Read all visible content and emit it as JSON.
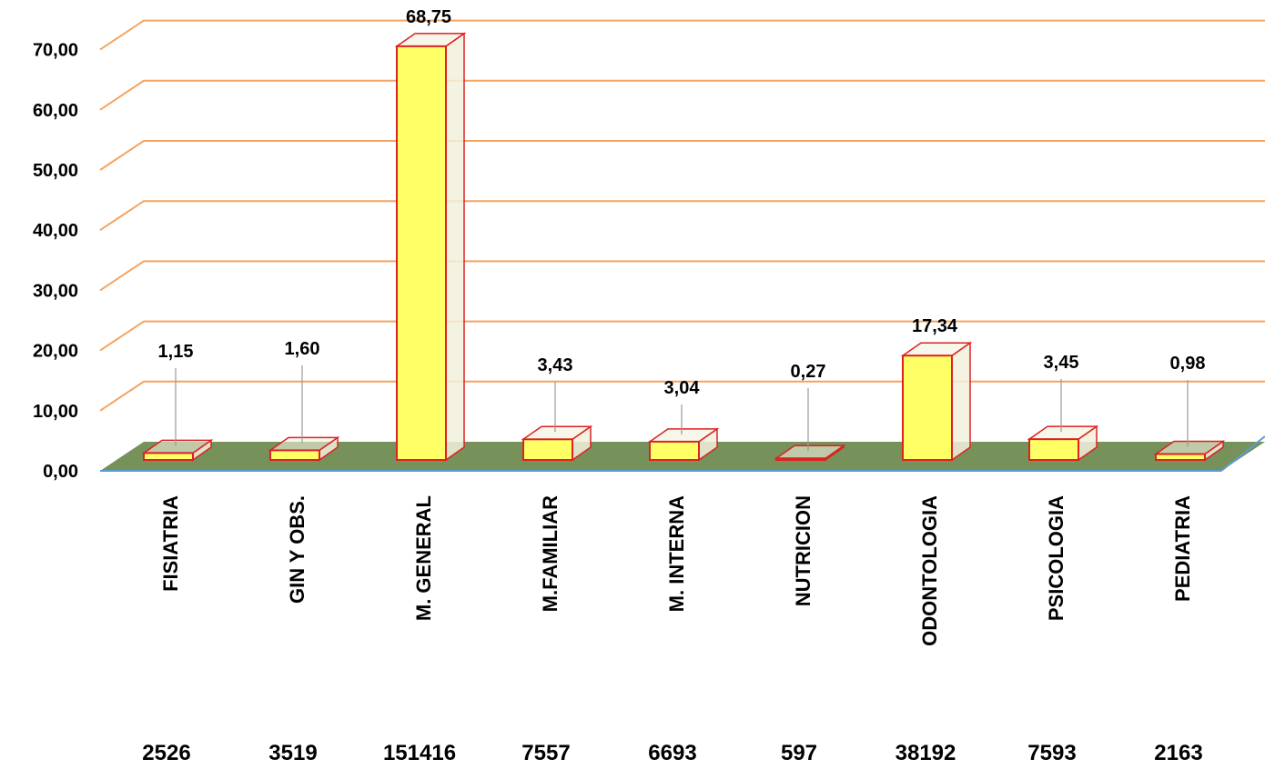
{
  "chart_data": {
    "type": "bar",
    "categories": [
      "FISIATRIA",
      "GIN Y OBS.",
      "M. GENERAL",
      "M.FAMILIAR",
      "M. INTERNA",
      "NUTRICION",
      "ODONTOLOGIA",
      "PSICOLOGIA",
      "PEDIATRIA"
    ],
    "values": [
      1.15,
      1.6,
      68.75,
      3.43,
      3.04,
      0.27,
      17.34,
      3.45,
      0.98
    ],
    "data_labels": [
      "1,15",
      "1,60",
      "68,75",
      "3,43",
      "3,04",
      "0,27",
      "17,34",
      "3,45",
      "0,98"
    ],
    "counts": [
      "2526",
      "3519",
      "151416",
      "7557",
      "6693",
      "597",
      "38192",
      "7593",
      "2163"
    ],
    "y_ticks": [
      "0,00",
      "10,00",
      "20,00",
      "30,00",
      "40,00",
      "50,00",
      "60,00",
      "70,00"
    ],
    "ylim": [
      0,
      75
    ],
    "grid": true,
    "colors": {
      "bar_fill": "#ffff66",
      "bar_stroke": "#dd2222",
      "bar_side": "#f2f0dc",
      "floor": "#76925a",
      "gridline": "#f4a460",
      "baseline": "#5b9bd5"
    }
  }
}
